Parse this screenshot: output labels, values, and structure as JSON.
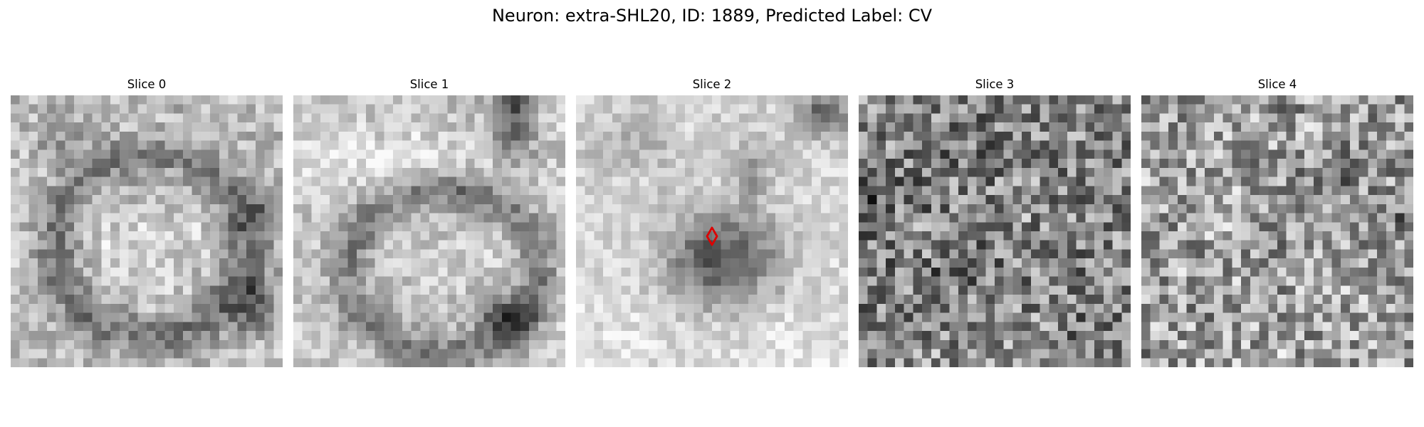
{
  "figure": {
    "title": "Neuron: extra-SHL20, ID: 1889, Predicted Label: CV"
  },
  "slices": [
    {
      "title": "Slice 0",
      "seed": 11,
      "pattern": "ring-dark-right"
    },
    {
      "title": "Slice 1",
      "seed": 23,
      "pattern": "ring-lower-dark-corners"
    },
    {
      "title": "Slice 2",
      "seed": 37,
      "pattern": "dark-blob-center"
    },
    {
      "title": "Slice 3",
      "seed": 53,
      "pattern": "noise"
    },
    {
      "title": "Slice 4",
      "seed": 71,
      "pattern": "noise-light"
    }
  ],
  "marker": {
    "slice_index": 2,
    "color": "#dd0000",
    "shape": "diamond-outline"
  },
  "colormap": "gray"
}
